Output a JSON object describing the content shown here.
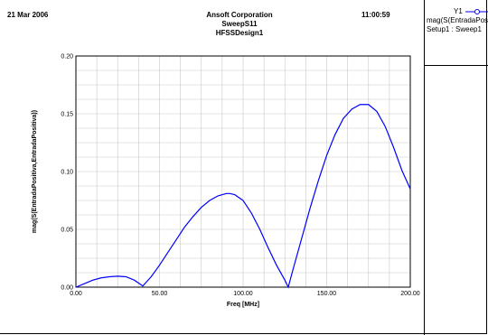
{
  "header": {
    "date": "21 Mar 2006",
    "company": "Ansoft Corporation",
    "plot_name": "SweepS11",
    "design": "HFSSDesign1",
    "time": "11:00:59"
  },
  "legend": {
    "axis": "Y1",
    "trace": "mag(S(EntradaPositiva,EntradaPositiva))",
    "setup": "Setup1 : Sweep1",
    "color": "#0000ff"
  },
  "chart_data": {
    "type": "line",
    "xlabel": "Freq [MHz]",
    "ylabel": "mag(S(EntradaPositiva,EntradaPositiva))",
    "xlim": [
      0,
      200
    ],
    "ylim": [
      0,
      0.2
    ],
    "x_ticks": [
      "0.00",
      "50.00",
      "100.00",
      "150.00",
      "200.00"
    ],
    "y_ticks": [
      "0.00",
      "0.05",
      "0.10",
      "0.15",
      "0.20"
    ],
    "grid": true,
    "series": [
      {
        "color": "#0000ff",
        "x": [
          0,
          5,
          10,
          15,
          20,
          25,
          30,
          35,
          38,
          40,
          45,
          50,
          55,
          60,
          65,
          70,
          75,
          80,
          85,
          90,
          92,
          95,
          100,
          105,
          110,
          115,
          120,
          125,
          127,
          130,
          135,
          140,
          145,
          150,
          155,
          160,
          165,
          170,
          175,
          180,
          185,
          190,
          195,
          200
        ],
        "y": [
          0.0,
          0.003,
          0.006,
          0.008,
          0.009,
          0.0095,
          0.009,
          0.006,
          0.003,
          0.001,
          0.009,
          0.019,
          0.03,
          0.041,
          0.052,
          0.061,
          0.069,
          0.075,
          0.079,
          0.081,
          0.081,
          0.08,
          0.075,
          0.064,
          0.05,
          0.034,
          0.019,
          0.006,
          0.0,
          0.016,
          0.042,
          0.068,
          0.092,
          0.114,
          0.132,
          0.146,
          0.154,
          0.158,
          0.158,
          0.152,
          0.139,
          0.121,
          0.101,
          0.085
        ]
      }
    ]
  }
}
